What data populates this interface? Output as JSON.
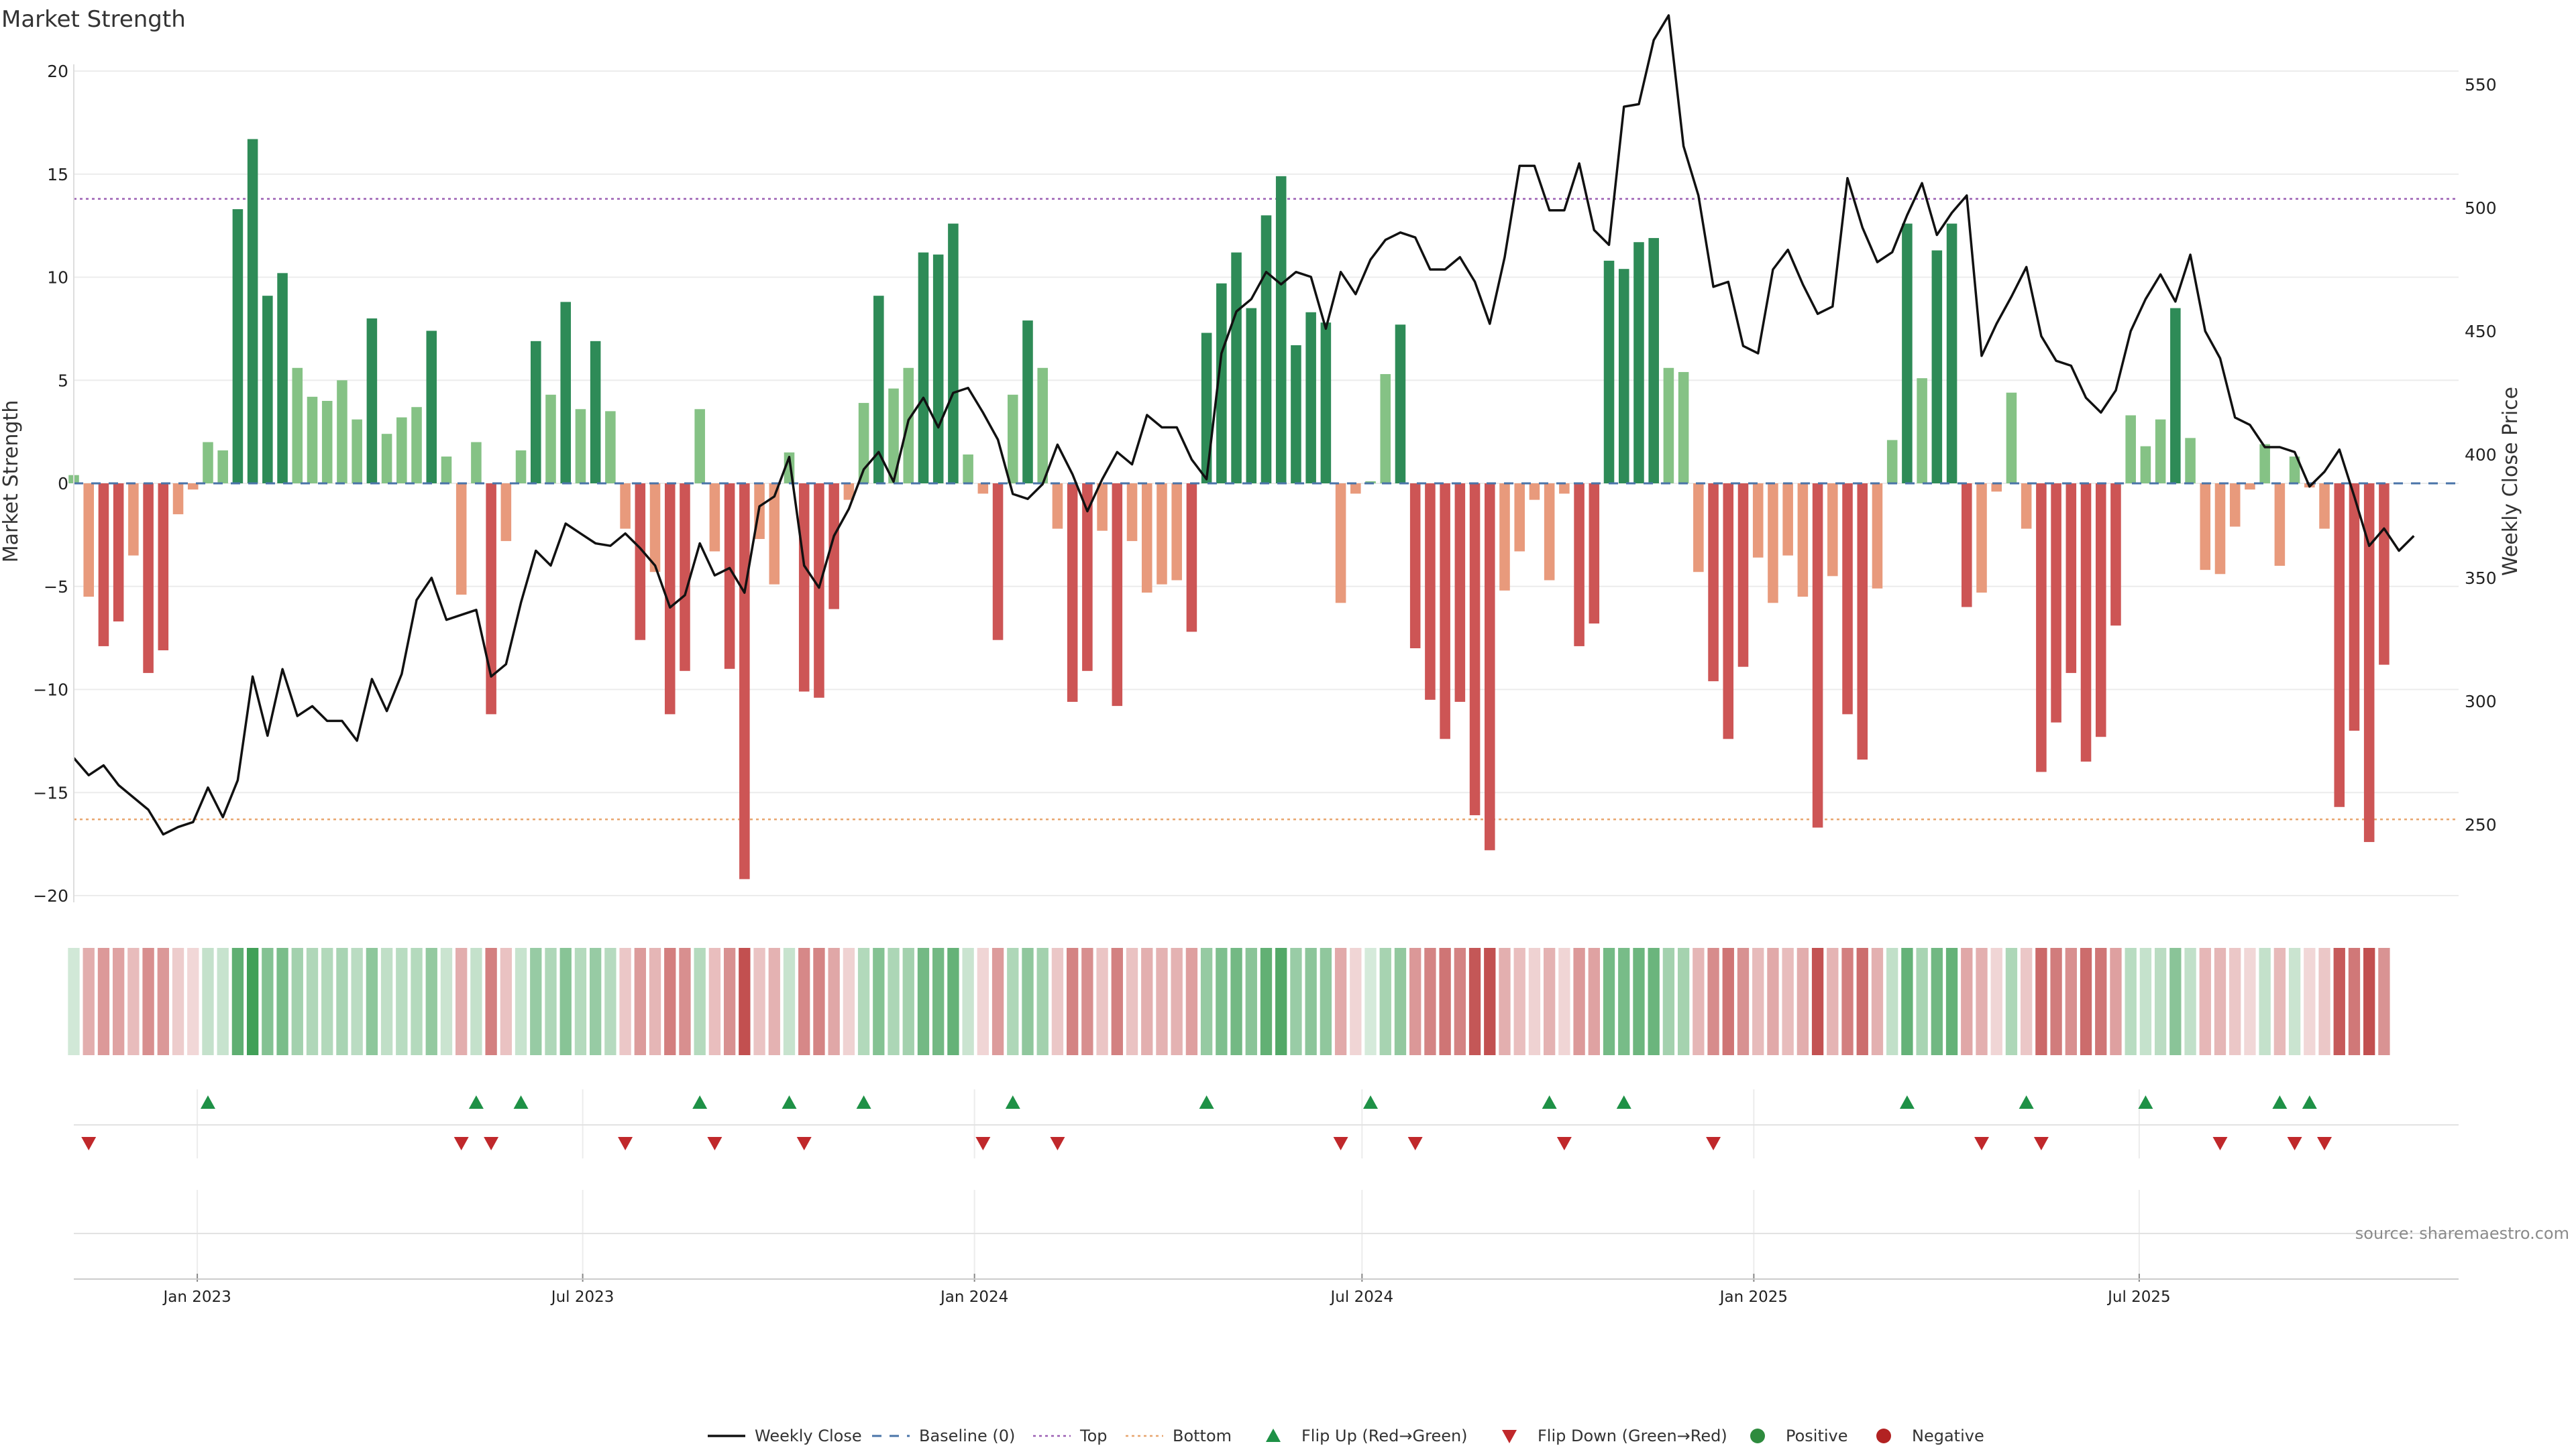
{
  "chart_data": {
    "type": "bar",
    "title": "Market Strength",
    "ylabel_left": "Market Strength",
    "ylabel_right": "Weekly Close Price",
    "ylim_left": [
      -21,
      20
    ],
    "yticks_left": [
      20,
      15,
      10,
      5,
      0,
      -5,
      -10,
      -15,
      -20
    ],
    "ytick_labels_left": [
      "20",
      "15",
      "10",
      "5",
      "0",
      "−5",
      "−10",
      "−15",
      "−20"
    ],
    "ylim_right": [
      220,
      560
    ],
    "yticks_right": [
      550,
      500,
      450,
      400,
      350,
      300,
      250
    ],
    "ytick_labels_right": [
      "550",
      "500",
      "450",
      "400",
      "350",
      "300",
      "250"
    ],
    "x_start": "2022-11-04",
    "x_end": "2025-11-28",
    "xticks": [
      "2023-01-01",
      "2023-07-01",
      "2024-01-01",
      "2024-07-01",
      "2025-01-01",
      "2025-07-01"
    ],
    "xtick_labels": [
      "Jan 2023",
      "Jul 2023",
      "Jan 2024",
      "Jul 2024",
      "Jan 2025",
      "Jul 2025"
    ],
    "top_level": 13.8,
    "bottom_level": -16.3,
    "strength": [
      0.4,
      -5.5,
      -7.9,
      -6.7,
      -3.5,
      -9.2,
      -8.1,
      -1.5,
      -0.3,
      2.0,
      1.6,
      13.3,
      16.7,
      9.1,
      10.2,
      5.6,
      4.2,
      4.0,
      5.0,
      3.1,
      8.0,
      2.4,
      3.2,
      3.7,
      7.4,
      1.3,
      -5.4,
      2.0,
      -11.2,
      -2.8,
      1.6,
      6.9,
      4.3,
      8.8,
      3.6,
      6.9,
      3.5,
      -2.2,
      -7.6,
      -4.3,
      -11.2,
      -9.1,
      3.6,
      -3.3,
      -9.0,
      -19.2,
      -2.7,
      -4.9,
      1.5,
      -10.1,
      -10.4,
      -6.1,
      -0.8,
      3.9,
      9.1,
      4.6,
      5.6,
      11.2,
      11.1,
      12.6,
      1.4,
      -0.5,
      -7.6,
      4.3,
      7.9,
      5.6,
      -2.2,
      -10.6,
      -9.1,
      -2.3,
      -10.8,
      -2.8,
      -5.3,
      -4.9,
      -4.7,
      -7.2,
      7.3,
      9.7,
      11.2,
      8.5,
      13.0,
      14.9,
      6.7,
      8.3,
      7.8,
      -5.8,
      -0.5,
      0.1,
      5.3,
      7.7,
      -8.0,
      -10.5,
      -12.4,
      -10.6,
      -16.1,
      -17.8,
      -5.2,
      -3.3,
      -0.8,
      -4.7,
      -0.5,
      -7.9,
      -6.8,
      10.8,
      10.4,
      11.7,
      11.9,
      5.6,
      5.4,
      -4.3,
      -9.6,
      -12.4,
      -8.9,
      -3.6,
      -5.8,
      -3.5,
      -5.5,
      -16.7,
      -4.5,
      -11.2,
      -13.4,
      -5.1,
      2.1,
      12.6,
      5.1,
      11.3,
      12.6,
      -6.0,
      -5.3,
      -0.4,
      4.4,
      -2.2,
      -14.0,
      -11.6,
      -9.2,
      -13.5,
      -12.3,
      -6.9,
      3.3,
      1.8,
      3.1,
      8.5,
      2.2,
      -4.2,
      -4.4,
      -2.1,
      -0.3,
      1.9,
      -4.0,
      1.3,
      -0.2,
      -2.2,
      -15.7,
      -12.0,
      -17.4,
      -8.8
    ],
    "weekly_close": [
      277,
      270,
      274,
      266,
      261,
      256,
      246,
      249,
      251,
      265,
      253,
      268,
      310,
      286,
      313,
      294,
      298,
      292,
      292,
      284,
      309,
      296,
      311,
      341,
      350,
      333,
      335,
      337,
      310,
      315,
      340,
      361,
      355,
      372,
      368,
      364,
      363,
      368,
      362,
      355,
      338,
      343,
      364,
      351,
      354,
      344,
      379,
      383,
      399,
      355,
      346,
      367,
      378,
      394,
      401,
      389,
      414,
      423,
      411,
      425,
      427,
      417,
      406,
      384,
      382,
      388,
      404,
      392,
      377,
      390,
      401,
      396,
      416,
      411,
      411,
      398,
      390,
      441,
      458,
      463,
      474,
      469,
      474,
      472,
      451,
      474,
      465,
      479,
      487,
      490,
      488,
      475,
      475,
      480,
      470,
      453,
      480,
      517,
      517,
      499,
      499,
      518,
      491,
      485,
      541,
      542,
      568,
      578,
      525,
      505,
      468,
      470,
      444,
      441,
      475,
      483,
      469,
      457,
      460,
      512,
      492,
      478,
      482,
      497,
      510,
      489,
      498,
      505,
      440,
      453,
      464,
      476,
      448,
      438,
      436,
      423,
      417,
      426,
      450,
      463,
      473,
      462,
      481,
      450,
      439,
      415,
      412,
      403,
      403,
      401,
      387,
      393,
      402,
      383,
      363,
      370,
      361,
      367
    ],
    "flip_up_weeks": [
      9,
      27,
      30,
      42,
      48,
      53,
      63,
      76,
      87,
      99,
      104,
      123,
      131,
      139,
      148,
      150
    ],
    "flip_down_weeks": [
      1,
      26,
      28,
      37,
      43,
      49,
      61,
      66,
      85,
      90,
      100,
      110,
      128,
      132,
      144,
      149,
      151
    ],
    "legend": [
      {
        "label": "Weekly Close",
        "kind": "line",
        "color": "#111111"
      },
      {
        "label": "Baseline (0)",
        "kind": "dash",
        "color": "#4a74a8"
      },
      {
        "label": "Top",
        "kind": "dot",
        "color": "#9b5fb3"
      },
      {
        "label": "Bottom",
        "kind": "dot",
        "color": "#e8a56e"
      },
      {
        "label": "Flip Up (Red→Green)",
        "kind": "tri-up",
        "color": "#1e9146"
      },
      {
        "label": "Flip Down (Green→Red)",
        "kind": "tri-down",
        "color": "#c0282b"
      },
      {
        "label": "Positive",
        "kind": "circle",
        "color": "#2e8b3e"
      },
      {
        "label": "Negative",
        "kind": "circle",
        "color": "#b22222"
      }
    ],
    "colors": {
      "pos_strong": "#2e8b57",
      "pos_light": "#85c285",
      "neg_strong": "#cd5555",
      "neg_light": "#e89a7c",
      "line": "#111111",
      "baseline": "#4a74a8",
      "top": "#9b5fb3",
      "bottom": "#e8a56e",
      "flip_up": "#1e9146",
      "flip_down": "#c0282b",
      "grid": "#ececec"
    }
  },
  "source_text": "source: sharemaestro.com"
}
